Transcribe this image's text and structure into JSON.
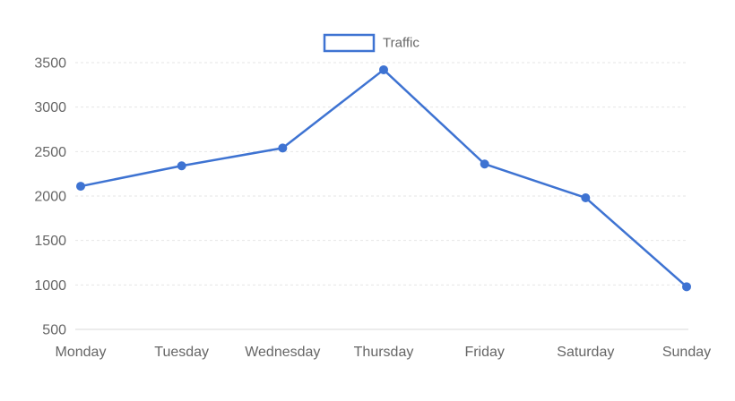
{
  "chart_data": {
    "type": "line",
    "categories": [
      "Monday",
      "Tuesday",
      "Wednesday",
      "Thursday",
      "Friday",
      "Saturday",
      "Sunday"
    ],
    "series": [
      {
        "name": "Traffic",
        "values": [
          2110,
          2340,
          2540,
          3420,
          2360,
          1980,
          980
        ]
      }
    ],
    "ylim": [
      500,
      3500
    ],
    "yticks": [
      500,
      1000,
      1500,
      2000,
      2500,
      3000,
      3500
    ],
    "grid": true,
    "legend_position": "top-center",
    "colors": {
      "series": "#3e73d2",
      "grid": "#e6e6e6",
      "text": "#666666"
    }
  }
}
